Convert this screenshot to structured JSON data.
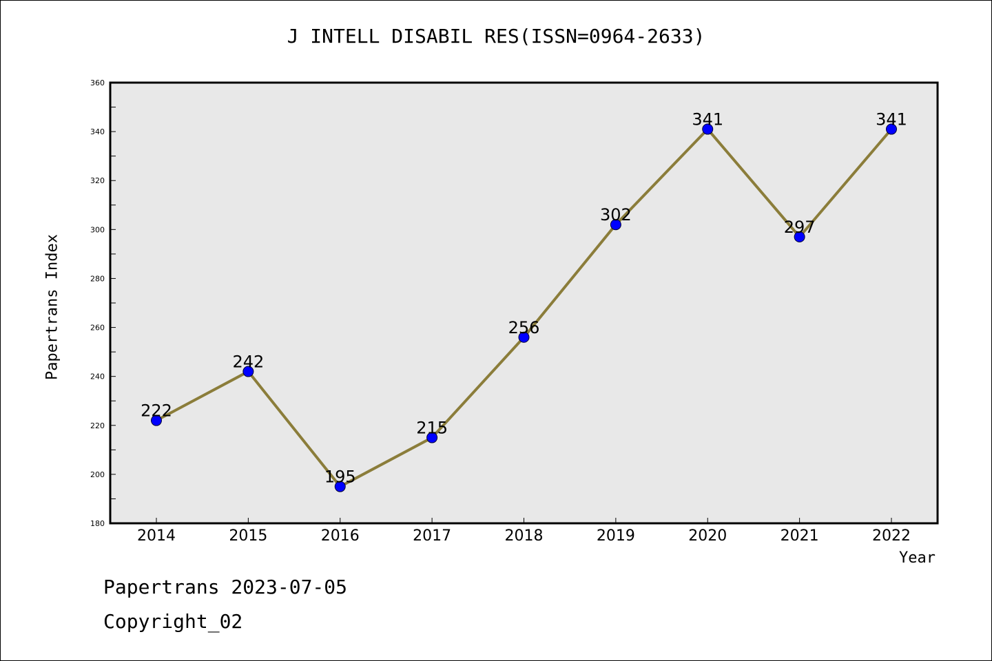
{
  "chart_data": {
    "type": "line",
    "title": "J INTELL DISABIL RES(ISSN=0964-2633)",
    "xlabel": "Year",
    "ylabel": "Papertrans Index",
    "categories": [
      "2014",
      "2015",
      "2016",
      "2017",
      "2018",
      "2019",
      "2020",
      "2021",
      "2022"
    ],
    "series": [
      {
        "values": [
          222,
          242,
          195,
          215,
          256,
          302,
          341,
          297,
          341
        ]
      }
    ],
    "ylim": [
      180,
      360
    ],
    "y_ticks": [
      180,
      200,
      220,
      240,
      260,
      280,
      300,
      320,
      340,
      360
    ],
    "grid": false,
    "line_color": "#8b7d3a",
    "marker_color": "#0000ff",
    "plot_background": "#e8e8e8"
  },
  "footer": {
    "line1": "Papertrans 2023-07-05",
    "line2": "Copyright_02"
  }
}
